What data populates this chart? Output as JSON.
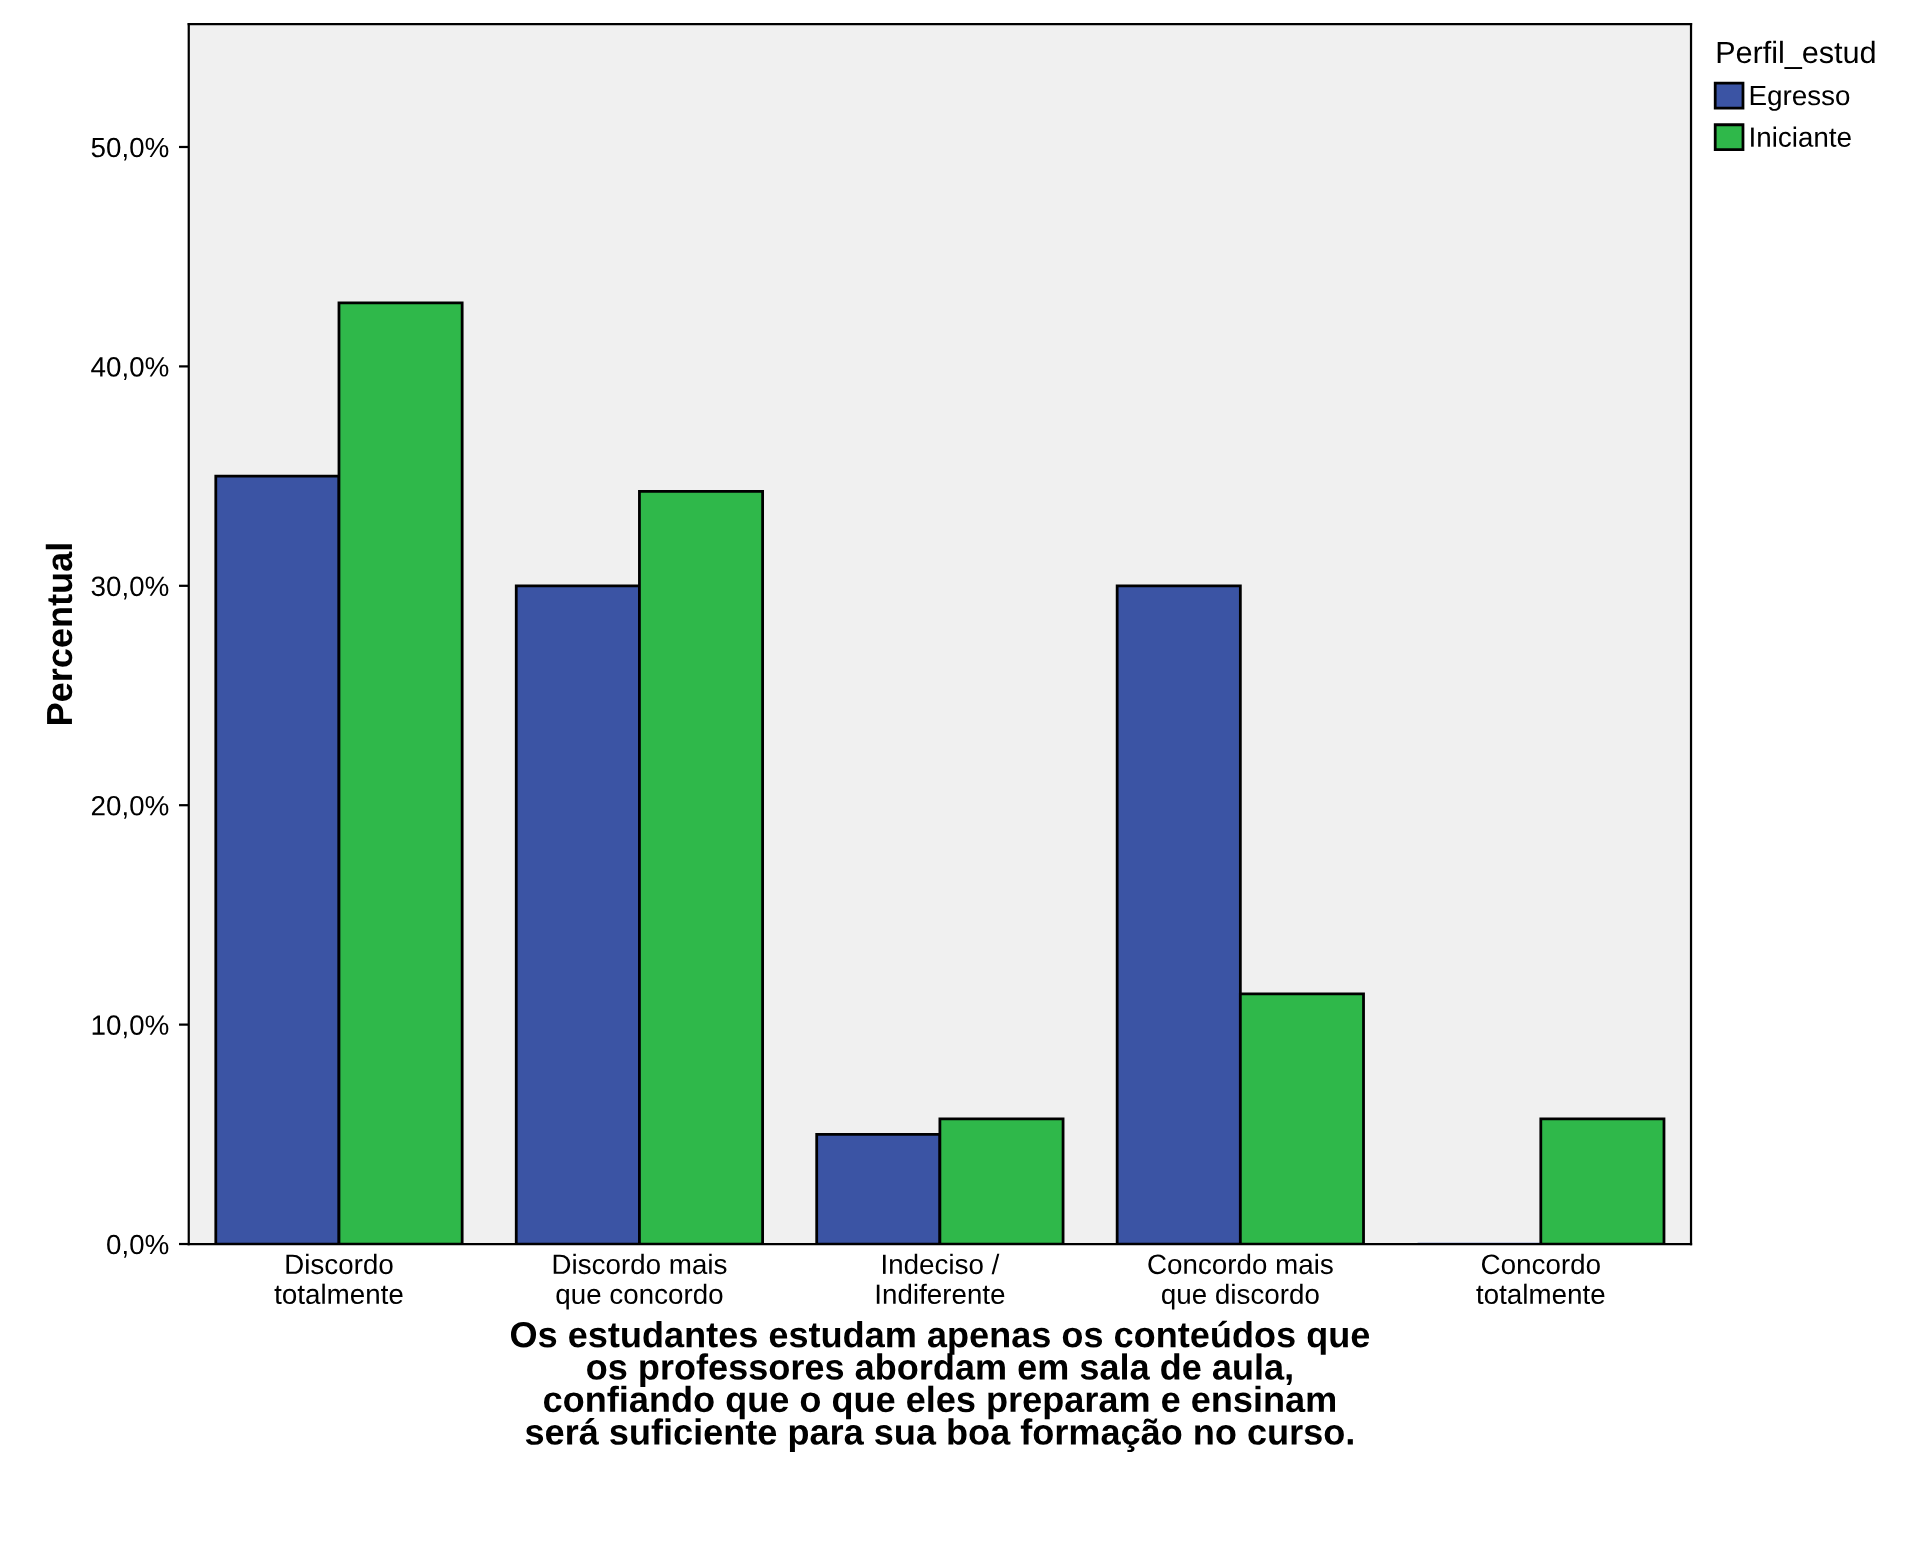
{
  "chart_data": {
    "type": "bar",
    "xlabel": "Os estudantes estudam apenas os conteúdos que\nos professores abordam em sala de aula,\nconfiando que o que eles preparam e ensinam\nserá suficiente para sua boa formação no curso.",
    "ylabel": "Percentual",
    "legend_title": "Perfil_estud",
    "categories": [
      "Discordo\ntotalmente",
      "Discordo mais\nque concordo",
      "Indeciso /\nIndiferente",
      "Concordo mais\nque discordo",
      "Concordo\ntotalmente"
    ],
    "series": [
      {
        "name": "Egresso",
        "color": "#3b54a4",
        "values": [
          35.0,
          30.0,
          5.0,
          30.0,
          0.0
        ]
      },
      {
        "name": "Iniciante",
        "color": "#2fb84a",
        "values": [
          42.9,
          34.3,
          5.7,
          11.4,
          5.7
        ]
      }
    ],
    "ylim": [
      0,
      55.6
    ],
    "yticks": [
      {
        "value": 0,
        "label": "0,0%"
      },
      {
        "value": 10,
        "label": "10,0%"
      },
      {
        "value": 20,
        "label": "20,0%"
      },
      {
        "value": 30,
        "label": "30,0%"
      },
      {
        "value": 40,
        "label": "40,0%"
      },
      {
        "value": 50,
        "label": "50,0%"
      }
    ],
    "grid": false,
    "legend": "right"
  }
}
